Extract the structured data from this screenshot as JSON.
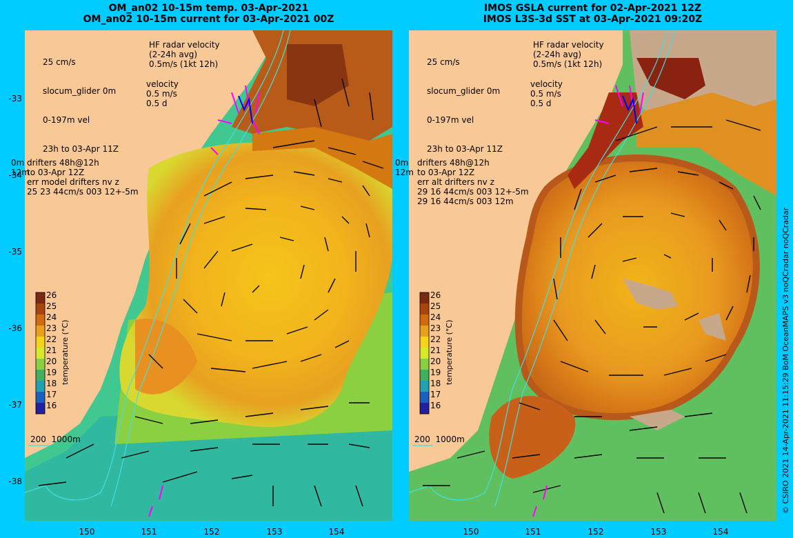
{
  "left_panel": {
    "title_line1": "OM_an02 10-15m temp. 03-Apr-2021",
    "title_line2": "OM_an02 10-15m current for 03-Apr-2021 00Z",
    "drifter_text": "drifters 48h@12h\nto 03-Apr 12Z\nerr model drifters nv z\n25 23 44cm/s 003 12+-5m"
  },
  "right_panel": {
    "title_line1": "IMOS GSLA current for 02-Apr-2021 12Z",
    "title_line2": "IMOS L3S-3d SST at 03-Apr-2021 09:20Z",
    "drifter_text": "drifters 48h@12h\nto 03-Apr 12Z\nerr alt drifters nv z\n29 16 44cm/s 003 12+-5m\n29 16 44cm/s 003 12m"
  },
  "legend": {
    "glider_scale": "25 cm/s",
    "glider_label": "slocum_glider 0m",
    "glider_vel": "0-197m vel",
    "glider_time": "23h to 03-Apr 11Z",
    "hf_radar": "HF radar velocity\n(2-24h avg)\n0.5m/s (1kt 12h)",
    "velocity": "velocity\n0.5 m/s\n0.5 d",
    "depth_contours": "200  1000m",
    "side_0m": "0m",
    "side_12m": "12m"
  },
  "axes": {
    "latitudes": [
      "-33",
      "-34",
      "-35",
      "-36",
      "-37",
      "-38"
    ],
    "longitudes": [
      "150",
      "151",
      "152",
      "153",
      "154"
    ]
  },
  "colorbar": {
    "title": "temperature (°C)",
    "ticks": [
      "26",
      "25",
      "24",
      "23",
      "22",
      "21",
      "20",
      "19",
      "18",
      "17",
      "16"
    ],
    "colors": [
      "#7a2a10",
      "#a8450f",
      "#cf6a10",
      "#e8a020",
      "#f7d21a",
      "#d8e82a",
      "#88d040",
      "#40b060",
      "#20a0b0",
      "#1a60c0",
      "#2020a0"
    ]
  },
  "credit": "© CSIRO 2021  14-Apr-2021 11:15:29 BoM OceanMAPS v3 noQCradar noQCradar",
  "colors": {
    "land": "#f8c896",
    "frame": "#00ccff",
    "drifter": "#ff00ff",
    "glider": "#0000ff",
    "contour": "#40e0e0"
  }
}
